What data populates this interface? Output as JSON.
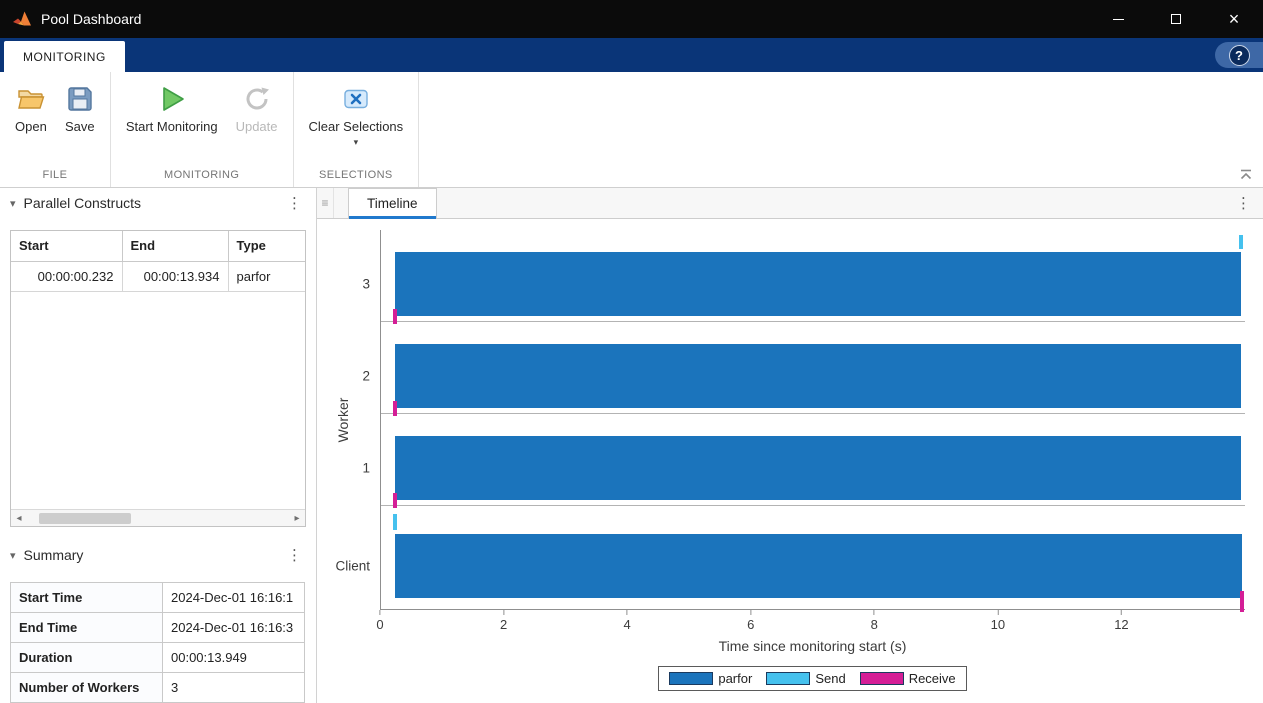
{
  "titlebar": {
    "title": "Pool Dashboard",
    "window_controls": {
      "minimize": "–",
      "maximize": "▢",
      "close": "×"
    }
  },
  "ribbon_tabs": {
    "monitoring": "MONITORING",
    "help": "?"
  },
  "toolbar": {
    "open": "Open",
    "save": "Save",
    "start_monitoring": "Start Monitoring",
    "update": "Update",
    "clear_selections": "Clear Selections",
    "clear_selections_caret": "▾",
    "sections": {
      "file": "FILE",
      "monitoring": "MONITORING",
      "selections": "SELECTIONS"
    }
  },
  "constructs_panel": {
    "collapse_glyph": "▾",
    "title": "Parallel Constructs",
    "menu_glyph": "⋮",
    "columns": [
      "Start",
      "End",
      "Type"
    ],
    "rows": [
      {
        "start": "00:00:00.232",
        "end": "00:00:13.934",
        "type": "parfor"
      }
    ],
    "scrollbar": {
      "left_arrow": "◂",
      "right_arrow": "▸"
    }
  },
  "summary_panel": {
    "collapse_glyph": "▾",
    "title": "Summary",
    "menu_glyph": "⋮",
    "rows": [
      {
        "label": "Start Time",
        "value": "2024-Dec-01 16:16:1"
      },
      {
        "label": "End Time",
        "value": "2024-Dec-01 16:16:3"
      },
      {
        "label": "Duration",
        "value": "00:00:13.949"
      },
      {
        "label": "Number of Workers",
        "value": "3"
      }
    ]
  },
  "timeline_panel": {
    "grip_glyph": "≡",
    "tab": "Timeline",
    "menu_glyph": "⋮"
  },
  "chart_data": {
    "type": "timeline",
    "ylabel": "Worker",
    "xlabel": "Time since monitoring start (s)",
    "categories": [
      "3",
      "2",
      "1",
      "Client"
    ],
    "xticks": [
      0,
      2,
      4,
      6,
      8,
      10,
      12
    ],
    "xlim": [
      0,
      14
    ],
    "grid": false,
    "legend_position": "bottom",
    "bars": [
      {
        "row": "3",
        "label": "parfor",
        "start": 0.232,
        "end": 13.934
      },
      {
        "row": "2",
        "label": "parfor",
        "start": 0.232,
        "end": 13.934
      },
      {
        "row": "1",
        "label": "parfor",
        "start": 0.232,
        "end": 13.934
      },
      {
        "row": "Client",
        "label": "parfor",
        "start": 0.232,
        "end": 13.949
      }
    ],
    "markers": [
      {
        "row": "3",
        "kind": "Receive",
        "t": 0.232,
        "edge": "bottom"
      },
      {
        "row": "2",
        "kind": "Receive",
        "t": 0.232,
        "edge": "bottom"
      },
      {
        "row": "1",
        "kind": "Receive",
        "t": 0.232,
        "edge": "bottom"
      },
      {
        "row": "3",
        "kind": "Send",
        "t": 13.934,
        "edge": "top"
      },
      {
        "row": "Client",
        "kind": "Send",
        "t": 0.232,
        "edge": "top"
      },
      {
        "row": "Client",
        "kind": "Receive",
        "t": 13.949,
        "edge": "bottom"
      }
    ],
    "legend": [
      {
        "label": "parfor",
        "color": "#1b74bc"
      },
      {
        "label": "Send",
        "color": "#45c1ee"
      },
      {
        "label": "Receive",
        "color": "#d41e96"
      }
    ]
  },
  "colors": {
    "titlebar_bg": "#0b0b0b",
    "ribbon_strip_blue": "#0a3578",
    "active_tab_underline": "#2079cd",
    "parfor_blue": "#1b74bc",
    "send_cyan": "#45c1ee",
    "receive_magenta": "#d41e96",
    "start_monitoring_green": "#6cc763"
  }
}
